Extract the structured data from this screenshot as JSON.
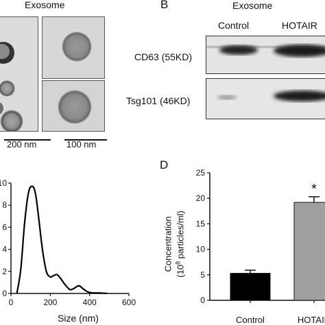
{
  "panel_a": {
    "title": "Exosome",
    "scalebar_left": "200 nm",
    "scalebar_right": "100 nm"
  },
  "panel_b": {
    "letter": "B",
    "title": "Exosome",
    "lane_labels": [
      "Control",
      "HOTAIR"
    ],
    "row_labels": [
      "CD63 (55KD)",
      "Tsg101 (46KD)"
    ]
  },
  "chart_c": {
    "xlabel": "Size (nm)"
  },
  "panel_d": {
    "letter": "D",
    "ylabel_line1": "Concentration",
    "ylabel_line2_prefix": "(10",
    "ylabel_line2_sup": "8",
    "ylabel_line2_suffix": " particles/ml)",
    "significance": "*"
  },
  "chart_data": [
    {
      "type": "line",
      "title": "",
      "xlabel": "Size (nm)",
      "ylabel": "",
      "xlim": [
        0,
        600
      ],
      "ylim": [
        0,
        10
      ],
      "xticks": [
        "0",
        "200",
        "400",
        "600"
      ],
      "yticks": [
        "0",
        "2",
        "4",
        "6",
        "8",
        "10"
      ],
      "series": [
        {
          "x": [
            30,
            50,
            70,
            90,
            110,
            125,
            140,
            160,
            180,
            200,
            215,
            235,
            255,
            275,
            300,
            320,
            345,
            365,
            390,
            420,
            450,
            490
          ],
          "values": [
            0.0,
            2.2,
            6.5,
            9.2,
            9.7,
            9.0,
            7.0,
            4.0,
            2.0,
            1.5,
            1.6,
            1.7,
            1.3,
            0.8,
            0.35,
            0.45,
            0.7,
            0.45,
            0.15,
            0.05,
            0.05,
            0.0
          ]
        }
      ]
    },
    {
      "type": "bar",
      "title": "",
      "xlabel": "",
      "ylabel": "Concentration (10^8 particles/ml)",
      "ylim": [
        0,
        25
      ],
      "yticks": [
        "0",
        "5",
        "10",
        "15",
        "20",
        "25"
      ],
      "categories": [
        "Control",
        "HOTAIR"
      ],
      "values": [
        5.3,
        19.2
      ],
      "errors": [
        0.6,
        1.1
      ],
      "colors": [
        "#000000",
        "#a0a0a0"
      ]
    }
  ]
}
